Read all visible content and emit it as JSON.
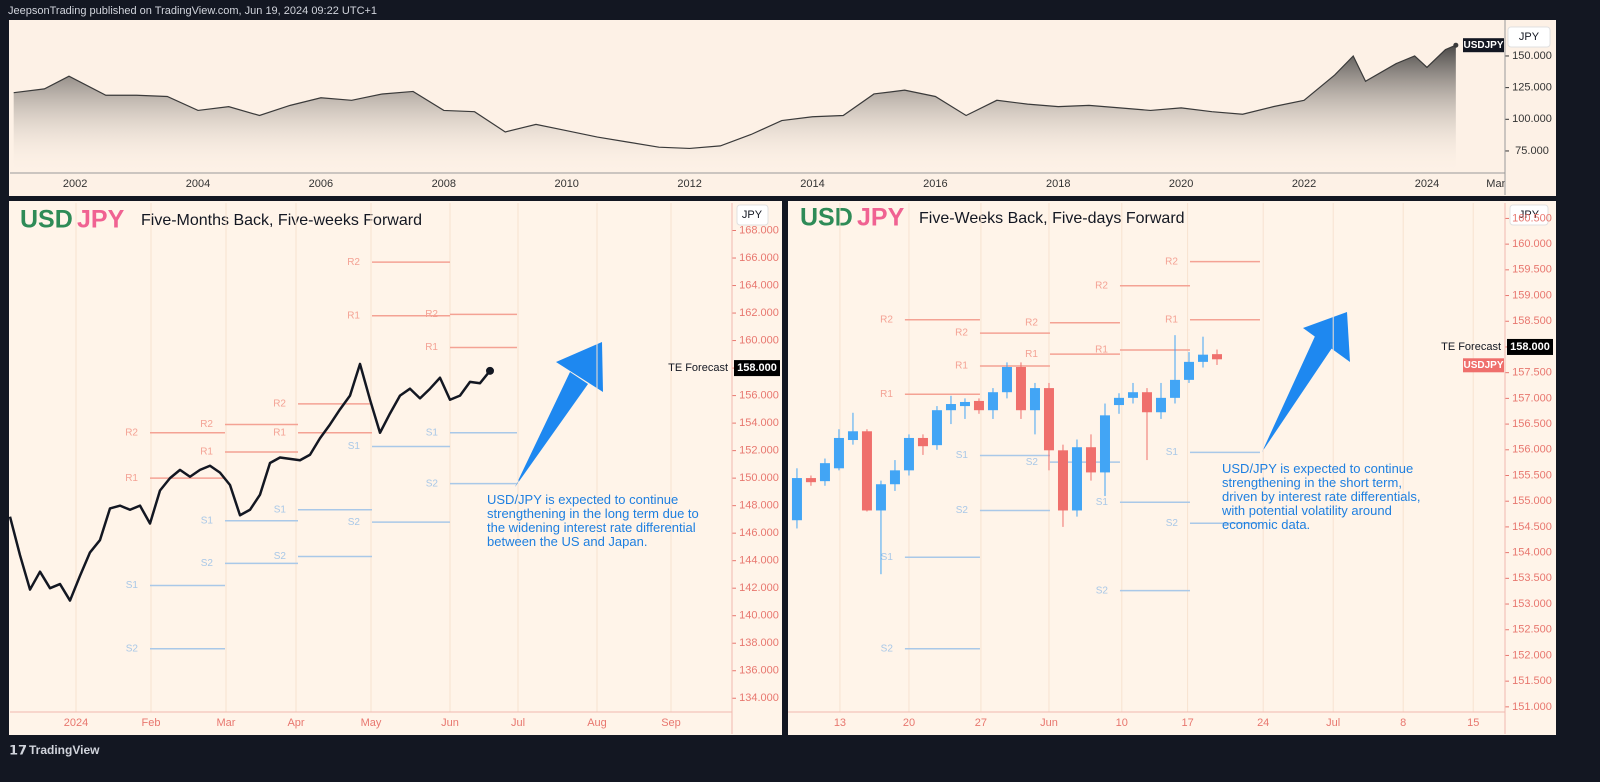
{
  "header": {
    "text": "JeepsonTrading published on TradingView.com, Jun 19, 2024 09:22 UTC+1"
  },
  "footer": {
    "brand": "TradingView"
  },
  "chart_data": [
    {
      "type": "area",
      "currency_button": "JPY",
      "color": "#3a3a3a",
      "axis_color": "#333333",
      "grid": false,
      "symbol_tag": {
        "label": "USDJPY",
        "value": 158.5
      },
      "x": [
        2001,
        2001.5,
        2001.9,
        2002.5,
        2003,
        2003.5,
        2004,
        2004.5,
        2005,
        2005.5,
        2006,
        2006.5,
        2007,
        2007.5,
        2008,
        2008.5,
        2009,
        2009.5,
        2010,
        2010.5,
        2011,
        2011.5,
        2012,
        2012.5,
        2013,
        2013.5,
        2014,
        2014.5,
        2015,
        2015.5,
        2016,
        2016.5,
        2017,
        2017.5,
        2018,
        2018.5,
        2019,
        2019.5,
        2020,
        2020.5,
        2021,
        2021.5,
        2022,
        2022.5,
        2022.8,
        2023,
        2023.5,
        2023.8,
        2024,
        2024.3,
        2024.47
      ],
      "values": [
        121,
        124,
        134,
        119,
        119,
        118,
        107,
        110,
        103,
        111,
        117,
        115,
        120,
        122,
        107,
        106,
        90,
        96,
        91,
        86,
        82,
        78,
        77,
        79,
        88,
        99,
        102,
        103,
        120,
        123,
        118,
        103,
        115,
        112,
        110,
        111,
        109,
        107,
        109,
        106,
        104,
        110,
        115,
        135,
        150,
        130,
        144,
        150,
        141,
        155,
        158.5
      ],
      "xlim": [
        2000.94,
        2025.27
      ],
      "xticks": [
        2002,
        2004,
        2006,
        2008,
        2010,
        2012,
        2014,
        2016,
        2018,
        2020,
        2022,
        2024,
        {
          "value": 2025.12,
          "label": "Mar"
        }
      ],
      "ylim": [
        57.6,
        178.4
      ],
      "yticks": [
        {
          "value": 75,
          "label": "75.000"
        },
        {
          "value": 100,
          "label": "100.000"
        },
        {
          "value": 125,
          "label": "125.000"
        },
        {
          "value": 150,
          "label": "150.000"
        }
      ]
    },
    {
      "type": "line",
      "symbol_base": "USD",
      "symbol_quote": "JPY",
      "base_color": "#2e8b57",
      "quote_color": "#f06292",
      "title": "Five-Months Back, Five-weeks Forward",
      "currency_button": "JPY",
      "color": "#131722",
      "axis_color": "#e8776f",
      "grid": "x",
      "resistance_color": "#f4a294",
      "support_color": "#a9c8e8",
      "annotation_color": "#1e7fe0",
      "annotation": "USD/JPY is expected to continue strengthening in the long term due to the widening interest rate differential between the US and Japan.",
      "forecast": {
        "label": "TE Forecast",
        "value": 158,
        "value_label": "158.000"
      },
      "values": [
        147.2,
        144.4,
        141.9,
        143.2,
        142.0,
        142.3,
        141.1,
        142.9,
        144.6,
        145.5,
        147.8,
        148.0,
        147.7,
        148.0,
        146.7,
        149.1,
        150.0,
        150.6,
        150.1,
        150.6,
        150.9,
        150.4,
        149.5,
        147.3,
        147.7,
        148.8,
        151.1,
        151.5,
        151.4,
        151.3,
        151.7,
        152.9,
        153.9,
        155.0,
        156.0,
        158.3,
        155.7,
        153.3,
        154.7,
        156.0,
        156.5,
        155.8,
        156.5,
        157.3,
        155.7,
        156.0,
        157.0,
        156.9,
        157.8
      ],
      "xlim": [
        0,
        72.2
      ],
      "xticks": [
        {
          "value": 6.6,
          "label": "2024"
        },
        {
          "value": 14.1,
          "label": "Feb"
        },
        {
          "value": 21.6,
          "label": "Mar"
        },
        {
          "value": 28.6,
          "label": "Apr"
        },
        {
          "value": 36.1,
          "label": "May"
        },
        {
          "value": 44.0,
          "label": "Jun"
        },
        {
          "value": 50.8,
          "label": "Jul"
        },
        {
          "value": 58.7,
          "label": "Aug"
        },
        {
          "value": 66.1,
          "label": "Sep"
        }
      ],
      "ylim": [
        133.0,
        170.0
      ],
      "yticks": [
        {
          "value": 134,
          "label": "134.000"
        },
        {
          "value": 136,
          "label": "136.000"
        },
        {
          "value": 138,
          "label": "138.000"
        },
        {
          "value": 140,
          "label": "140.000"
        },
        {
          "value": 142,
          "label": "142.000"
        },
        {
          "value": 144,
          "label": "144.000"
        },
        {
          "value": 146,
          "label": "146.000"
        },
        {
          "value": 148,
          "label": "148.000"
        },
        {
          "value": 150,
          "label": "150.000"
        },
        {
          "value": 152,
          "label": "152.000"
        },
        {
          "value": 154,
          "label": "154.000"
        },
        {
          "value": 156,
          "label": "156.000"
        },
        {
          "value": 158,
          "label": "158.000"
        },
        {
          "value": 160,
          "label": "160.000"
        },
        {
          "value": 162,
          "label": "162.000"
        },
        {
          "value": 164,
          "label": "164.000"
        },
        {
          "value": 166,
          "label": "166.000"
        },
        {
          "value": 168,
          "label": "168.000"
        }
      ],
      "levels": [
        {
          "label": "R2",
          "start": 14,
          "end": 21.5,
          "value": 153.3
        },
        {
          "label": "R1",
          "start": 14,
          "end": 21.5,
          "value": 150.0
        },
        {
          "label": "S1",
          "start": 14,
          "end": 21.5,
          "value": 142.2
        },
        {
          "label": "S2",
          "start": 14,
          "end": 21.5,
          "value": 137.6
        },
        {
          "label": "R2",
          "start": 21.5,
          "end": 28.8,
          "value": 153.9
        },
        {
          "label": "R1",
          "start": 21.5,
          "end": 28.8,
          "value": 151.9
        },
        {
          "label": "S1",
          "start": 21.5,
          "end": 28.8,
          "value": 146.9
        },
        {
          "label": "S2",
          "start": 21.5,
          "end": 28.8,
          "value": 143.8
        },
        {
          "label": "R2",
          "start": 28.8,
          "end": 36.2,
          "value": 155.4
        },
        {
          "label": "R1",
          "start": 28.8,
          "end": 36.2,
          "value": 153.3
        },
        {
          "label": "S1",
          "start": 28.8,
          "end": 36.2,
          "value": 147.7
        },
        {
          "label": "S2",
          "start": 28.8,
          "end": 36.2,
          "value": 144.3
        },
        {
          "label": "R2",
          "start": 36.2,
          "end": 44,
          "value": 165.7
        },
        {
          "label": "R1",
          "start": 36.2,
          "end": 44,
          "value": 161.8
        },
        {
          "label": "S1",
          "start": 36.2,
          "end": 44,
          "value": 152.3
        },
        {
          "label": "S2",
          "start": 36.2,
          "end": 44,
          "value": 146.8
        },
        {
          "label": "R2",
          "start": 44,
          "end": 50.7,
          "value": 161.9
        },
        {
          "label": "R1",
          "start": 44,
          "end": 50.7,
          "value": 159.5
        },
        {
          "label": "S1",
          "start": 44,
          "end": 50.7,
          "value": 153.3
        },
        {
          "label": "S2",
          "start": 44,
          "end": 50.7,
          "value": 149.6
        }
      ]
    },
    {
      "type": "candlestick",
      "symbol_base": "USD",
      "symbol_quote": "JPY",
      "base_color": "#2e8b57",
      "quote_color": "#f06292",
      "title": "Five-Weeks Back, Five-days Forward",
      "currency_button": "JPY",
      "up_color": "#42a5f5",
      "down_color": "#ef6f6c",
      "axis_color": "#e8776f",
      "grid": "x",
      "resistance_color": "#f4a294",
      "support_color": "#a9c8e8",
      "annotation_color": "#1e7fe0",
      "annotation": "USD/JPY is expected to continue strengthening in the short term, driven by interest rate differentials, with potential volatility around economic data.",
      "forecast": {
        "label": "TE Forecast",
        "value": 158,
        "value_label": "158.000"
      },
      "symbol_tag": {
        "label": "USDJPY",
        "value": 157.76
      },
      "open": [
        154.63,
        155.45,
        155.39,
        155.64,
        156.19,
        156.36,
        154.82,
        155.33,
        155.6,
        156.23,
        156.09,
        156.77,
        156.85,
        156.95,
        156.77,
        157.12,
        157.61,
        156.77,
        157.2,
        155.99,
        154.82,
        156.05,
        155.56,
        156.87,
        157.01,
        157.12,
        156.73,
        157.01,
        157.36,
        157.71,
        157.86
      ],
      "close": [
        155.45,
        155.37,
        155.74,
        156.23,
        156.36,
        154.82,
        155.33,
        155.6,
        156.23,
        156.07,
        156.77,
        156.89,
        156.93,
        156.77,
        157.12,
        157.61,
        156.77,
        157.2,
        155.99,
        154.82,
        156.05,
        155.56,
        156.67,
        157.01,
        157.12,
        156.73,
        157.01,
        157.36,
        157.71,
        157.85,
        157.76
      ],
      "high": [
        155.64,
        155.5,
        155.83,
        156.4,
        156.72,
        156.4,
        155.4,
        155.8,
        156.3,
        156.3,
        156.85,
        157.05,
        157.0,
        157.0,
        157.2,
        157.7,
        157.7,
        157.3,
        157.3,
        156.1,
        156.2,
        156.3,
        156.9,
        157.1,
        157.3,
        157.2,
        157.3,
        158.23,
        157.9,
        158.2,
        157.95
      ],
      "low": [
        154.47,
        155.3,
        155.3,
        155.6,
        156.1,
        154.8,
        153.58,
        155.2,
        155.5,
        155.9,
        156.0,
        156.5,
        156.6,
        156.7,
        156.6,
        157.0,
        156.6,
        156.3,
        155.6,
        154.5,
        154.7,
        155.4,
        155.1,
        156.7,
        156.9,
        155.8,
        156.6,
        156.9,
        157.3,
        157.6,
        157.65
      ],
      "xlim": [
        -0.64,
        50.57
      ],
      "xticks": [
        {
          "value": 3.07,
          "label": "13"
        },
        {
          "value": 8.0,
          "label": "20"
        },
        {
          "value": 13.14,
          "label": "27"
        },
        {
          "value": 18.0,
          "label": "Jun"
        },
        {
          "value": 23.2,
          "label": "10"
        },
        {
          "value": 27.9,
          "label": "17"
        },
        {
          "value": 33.3,
          "label": "24"
        },
        {
          "value": 38.3,
          "label": "Jul"
        },
        {
          "value": 43.3,
          "label": "8"
        },
        {
          "value": 48.3,
          "label": "15"
        }
      ],
      "ylim": [
        150.9,
        160.8
      ],
      "yticks": [
        {
          "value": 151,
          "label": "151.000"
        },
        {
          "value": 151.5,
          "label": "151.500"
        },
        {
          "value": 152,
          "label": "152.000"
        },
        {
          "value": 152.5,
          "label": "152.500"
        },
        {
          "value": 153,
          "label": "153.000"
        },
        {
          "value": 153.5,
          "label": "153.500"
        },
        {
          "value": 154,
          "label": "154.000"
        },
        {
          "value": 154.5,
          "label": "154.500"
        },
        {
          "value": 155,
          "label": "155.000"
        },
        {
          "value": 155.5,
          "label": "155.500"
        },
        {
          "value": 156,
          "label": "156.000"
        },
        {
          "value": 156.5,
          "label": "156.500"
        },
        {
          "value": 157,
          "label": "157.000"
        },
        {
          "value": 157.5,
          "label": "157.500"
        },
        {
          "value": 158,
          "label": "158.000"
        },
        {
          "value": 158.5,
          "label": "158.500"
        },
        {
          "value": 159,
          "label": "159.000"
        },
        {
          "value": 159.5,
          "label": "159.500"
        },
        {
          "value": 160,
          "label": "160.000"
        },
        {
          "value": 160.5,
          "label": "160.500"
        }
      ],
      "levels": [
        {
          "label": "R2",
          "start": 7.71,
          "end": 13.07,
          "value": 158.53
        },
        {
          "label": "R1",
          "start": 7.71,
          "end": 13.07,
          "value": 157.08
        },
        {
          "label": "S1",
          "start": 7.71,
          "end": 13.07,
          "value": 153.91
        },
        {
          "label": "S2",
          "start": 7.71,
          "end": 13.07,
          "value": 152.13
        },
        {
          "label": "R2",
          "start": 13.07,
          "end": 18.07,
          "value": 158.27
        },
        {
          "label": "R1",
          "start": 13.07,
          "end": 18.07,
          "value": 157.63
        },
        {
          "label": "S1",
          "start": 13.07,
          "end": 18.07,
          "value": 155.89
        },
        {
          "label": "S2",
          "start": 13.07,
          "end": 18.07,
          "value": 154.82
        },
        {
          "label": "R2",
          "start": 18.07,
          "end": 23.07,
          "value": 158.47
        },
        {
          "label": "R1",
          "start": 18.07,
          "end": 23.07,
          "value": 157.86
        },
        {
          "label": "S2",
          "start": 18.07,
          "end": 23.07,
          "value": 155.76
        },
        {
          "label": "R2",
          "start": 23.07,
          "end": 28.07,
          "value": 159.19
        },
        {
          "label": "R1",
          "start": 23.07,
          "end": 28.07,
          "value": 157.94
        },
        {
          "label": "S1",
          "start": 23.07,
          "end": 28.07,
          "value": 154.98
        },
        {
          "label": "S2",
          "start": 23.07,
          "end": 28.07,
          "value": 153.26
        },
        {
          "label": "R2",
          "start": 28.07,
          "end": 33.07,
          "value": 159.66
        },
        {
          "label": "R1",
          "start": 28.07,
          "end": 33.07,
          "value": 158.53
        },
        {
          "label": "S1",
          "start": 28.07,
          "end": 33.07,
          "value": 155.95
        },
        {
          "label": "S2",
          "start": 28.07,
          "end": 33.07,
          "value": 154.57
        }
      ]
    }
  ]
}
